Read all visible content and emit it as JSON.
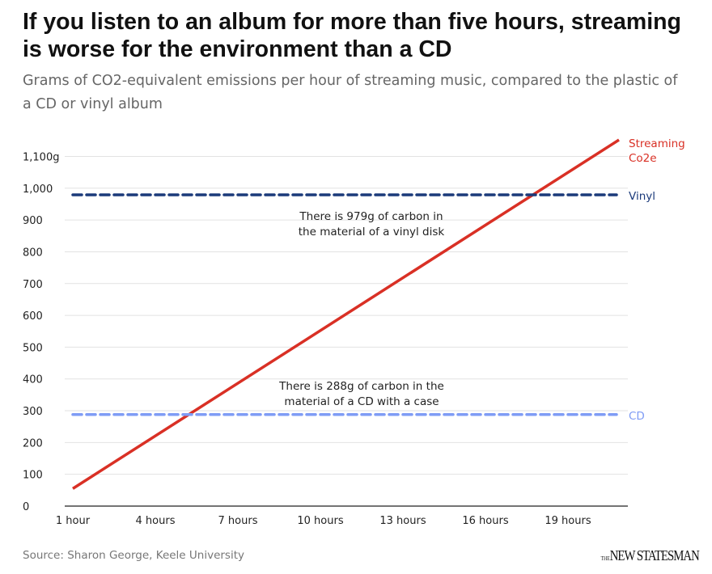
{
  "chart_data": {
    "type": "line",
    "title": "If you listen to an album for more than five hours, streaming is worse for the environment than a CD",
    "subtitle": "Grams of CO2-equivalent emissions per hour of streaming music, compared to the plastic of a CD or vinyl album",
    "xlabel": "",
    "ylabel": "",
    "x_range_hours": [
      1,
      21
    ],
    "ylim": [
      0,
      1170
    ],
    "y_ticks": [
      {
        "value": 0,
        "label": "0"
      },
      {
        "value": 100,
        "label": "100"
      },
      {
        "value": 200,
        "label": "200"
      },
      {
        "value": 300,
        "label": "300"
      },
      {
        "value": 400,
        "label": "400"
      },
      {
        "value": 500,
        "label": "500"
      },
      {
        "value": 600,
        "label": "600"
      },
      {
        "value": 700,
        "label": "700"
      },
      {
        "value": 800,
        "label": "800"
      },
      {
        "value": 900,
        "label": "900"
      },
      {
        "value": 1000,
        "label": "1,000"
      },
      {
        "value": 1100,
        "label": "1,100g"
      }
    ],
    "x_ticks": [
      {
        "value": 1,
        "label": "1 hour"
      },
      {
        "value": 4,
        "label": "4 hours"
      },
      {
        "value": 7,
        "label": "7 hours"
      },
      {
        "value": 10,
        "label": "10 hours"
      },
      {
        "value": 13,
        "label": "13 hours"
      },
      {
        "value": 16,
        "label": "16 hours"
      },
      {
        "value": 19,
        "label": "19 hours"
      }
    ],
    "grid": true,
    "series": [
      {
        "name": "Streaming Co2e",
        "label_lines": [
          "Streaming",
          "Co2e"
        ],
        "color": "#d93025",
        "style": "solid",
        "x": [
          1,
          21
        ],
        "values": [
          55,
          1155
        ]
      },
      {
        "name": "Vinyl",
        "label_lines": [
          "Vinyl"
        ],
        "color": "#1b3a7a",
        "style": "dashed",
        "x": [
          1,
          21
        ],
        "values": [
          979,
          979
        ]
      },
      {
        "name": "CD",
        "label_lines": [
          "CD"
        ],
        "color": "#7f9cf5",
        "style": "dashed",
        "x": [
          1,
          21
        ],
        "values": [
          288,
          288
        ]
      }
    ],
    "annotations": [
      {
        "lines": [
          "There is 979g of carbon in",
          "the material of a vinyl disk"
        ],
        "x": 10.8,
        "y": 910
      },
      {
        "lines": [
          "There is 288g of carbon in the",
          "material of a CD with a case"
        ],
        "x": 10.8,
        "y": 390
      }
    ],
    "source": "Source: Sharon George, Keele University",
    "publisher": "THE NEW STATESMAN"
  }
}
